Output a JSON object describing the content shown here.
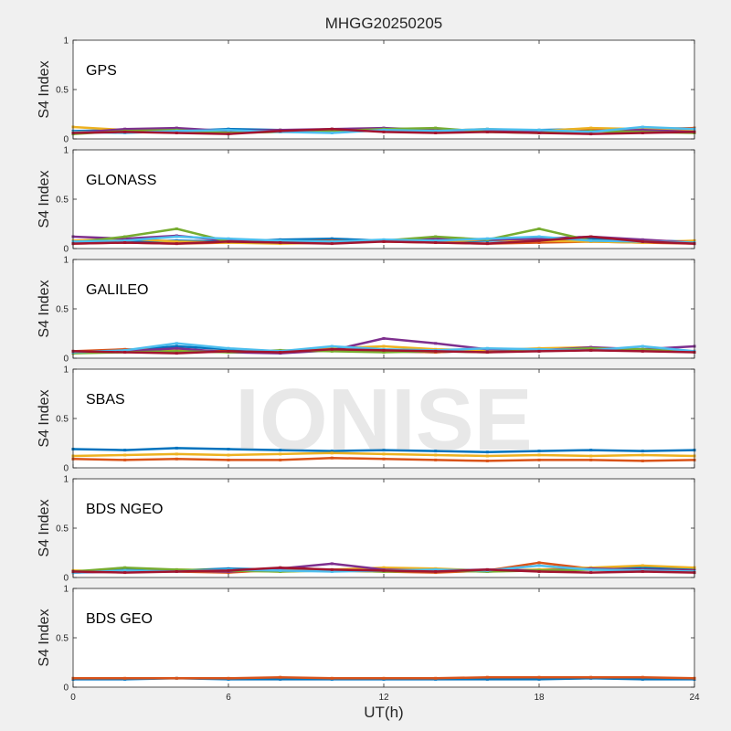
{
  "figure": {
    "title": "MHGG20250205",
    "xlabel": "UT(h)",
    "ylabel": "S4 Index",
    "watermark": "IONISE",
    "x_ticks": [
      "0",
      "6",
      "12",
      "18",
      "24"
    ],
    "y_ticks": [
      "0",
      "0.5",
      "1"
    ]
  },
  "chart_data": [
    {
      "type": "scatter",
      "panel_label": "GPS",
      "xlim": [
        0,
        24
      ],
      "ylim": [
        0,
        1
      ],
      "series": [
        {
          "color": "#0072BD",
          "x": [
            0,
            2,
            4,
            6,
            8,
            10,
            12,
            14,
            16,
            18,
            20,
            22,
            24
          ],
          "y": [
            0.08,
            0.09,
            0.08,
            0.1,
            0.09,
            0.08,
            0.1,
            0.09,
            0.08,
            0.09,
            0.1,
            0.09,
            0.08
          ]
        },
        {
          "color": "#D95319",
          "x": [
            0,
            2,
            4,
            6,
            8,
            10,
            12,
            14,
            16,
            18,
            20,
            22,
            24
          ],
          "y": [
            0.07,
            0.08,
            0.1,
            0.08,
            0.07,
            0.09,
            0.08,
            0.1,
            0.08,
            0.07,
            0.09,
            0.1,
            0.11
          ]
        },
        {
          "color": "#EDB120",
          "x": [
            0,
            2,
            4,
            6,
            8,
            10,
            12,
            14,
            16,
            18,
            20,
            22,
            24
          ],
          "y": [
            0.12,
            0.09,
            0.08,
            0.07,
            0.09,
            0.08,
            0.09,
            0.08,
            0.1,
            0.08,
            0.11,
            0.1,
            0.09
          ]
        },
        {
          "color": "#7E2F8E",
          "x": [
            0,
            2,
            4,
            6,
            8,
            10,
            12,
            14,
            16,
            18,
            20,
            22,
            24
          ],
          "y": [
            0.06,
            0.1,
            0.11,
            0.08,
            0.09,
            0.1,
            0.11,
            0.09,
            0.08,
            0.07,
            0.08,
            0.09,
            0.07
          ]
        },
        {
          "color": "#77AC30",
          "x": [
            0,
            2,
            4,
            6,
            8,
            10,
            12,
            14,
            16,
            18,
            20,
            22,
            24
          ],
          "y": [
            0.05,
            0.08,
            0.09,
            0.06,
            0.07,
            0.08,
            0.1,
            0.11,
            0.07,
            0.06,
            0.08,
            0.07,
            0.06
          ]
        },
        {
          "color": "#4DBEEE",
          "x": [
            0,
            2,
            4,
            6,
            8,
            10,
            12,
            14,
            16,
            18,
            20,
            22,
            24
          ],
          "y": [
            0.07,
            0.06,
            0.08,
            0.09,
            0.07,
            0.06,
            0.09,
            0.08,
            0.1,
            0.09,
            0.07,
            0.12,
            0.1
          ]
        },
        {
          "color": "#A2142F",
          "x": [
            0,
            2,
            4,
            6,
            8,
            10,
            12,
            14,
            16,
            18,
            20,
            22,
            24
          ],
          "y": [
            0.06,
            0.07,
            0.06,
            0.05,
            0.08,
            0.1,
            0.07,
            0.06,
            0.07,
            0.06,
            0.05,
            0.06,
            0.07
          ]
        }
      ]
    },
    {
      "type": "scatter",
      "panel_label": "GLONASS",
      "xlim": [
        0,
        24
      ],
      "ylim": [
        0,
        1
      ],
      "series": [
        {
          "color": "#0072BD",
          "x": [
            0,
            2,
            4,
            6,
            8,
            10,
            12,
            14,
            16,
            18,
            20,
            22,
            24
          ],
          "y": [
            0.06,
            0.07,
            0.08,
            0.07,
            0.09,
            0.1,
            0.08,
            0.07,
            0.08,
            0.09,
            0.1,
            0.08,
            0.07
          ]
        },
        {
          "color": "#D95319",
          "x": [
            0,
            2,
            4,
            6,
            8,
            10,
            12,
            14,
            16,
            18,
            20,
            22,
            24
          ],
          "y": [
            0.05,
            0.06,
            0.05,
            0.06,
            0.07,
            0.08,
            0.07,
            0.06,
            0.05,
            0.06,
            0.07,
            0.06,
            0.05
          ]
        },
        {
          "color": "#EDB120",
          "x": [
            0,
            2,
            4,
            6,
            8,
            10,
            12,
            14,
            16,
            18,
            20,
            22,
            24
          ],
          "y": [
            0.08,
            0.1,
            0.07,
            0.06,
            0.05,
            0.06,
            0.08,
            0.07,
            0.09,
            0.08,
            0.07,
            0.06,
            0.08
          ]
        },
        {
          "color": "#7E2F8E",
          "x": [
            0,
            2,
            4,
            6,
            8,
            10,
            12,
            14,
            16,
            18,
            20,
            22,
            24
          ],
          "y": [
            0.12,
            0.1,
            0.13,
            0.08,
            0.07,
            0.06,
            0.08,
            0.1,
            0.09,
            0.1,
            0.12,
            0.09,
            0.06
          ]
        },
        {
          "color": "#77AC30",
          "x": [
            0,
            2,
            4,
            6,
            8,
            10,
            12,
            14,
            16,
            18,
            20,
            22,
            24
          ],
          "y": [
            0.06,
            0.12,
            0.2,
            0.07,
            0.06,
            0.07,
            0.08,
            0.12,
            0.09,
            0.2,
            0.08,
            0.07,
            0.06
          ]
        },
        {
          "color": "#4DBEEE",
          "x": [
            0,
            2,
            4,
            6,
            8,
            10,
            12,
            14,
            16,
            18,
            20,
            22,
            24
          ],
          "y": [
            0.07,
            0.08,
            0.12,
            0.1,
            0.08,
            0.07,
            0.09,
            0.08,
            0.1,
            0.12,
            0.08,
            0.07,
            0.06
          ]
        },
        {
          "color": "#A2142F",
          "x": [
            0,
            2,
            4,
            6,
            8,
            10,
            12,
            14,
            16,
            18,
            20,
            22,
            24
          ],
          "y": [
            0.05,
            0.06,
            0.05,
            0.07,
            0.06,
            0.05,
            0.07,
            0.06,
            0.05,
            0.08,
            0.12,
            0.07,
            0.05
          ]
        }
      ]
    },
    {
      "type": "scatter",
      "panel_label": "GALILEO",
      "xlim": [
        0,
        24
      ],
      "ylim": [
        0,
        1
      ],
      "series": [
        {
          "color": "#0072BD",
          "x": [
            0,
            2,
            4,
            6,
            8,
            10,
            12,
            14,
            16,
            18,
            20,
            22,
            24
          ],
          "y": [
            0.06,
            0.08,
            0.12,
            0.09,
            0.07,
            0.08,
            0.07,
            0.06,
            0.08,
            0.07,
            0.09,
            0.08,
            0.07
          ]
        },
        {
          "color": "#D95319",
          "x": [
            0,
            2,
            4,
            6,
            8,
            10,
            12,
            14,
            16,
            18,
            20,
            22,
            24
          ],
          "y": [
            0.07,
            0.09,
            0.08,
            0.07,
            0.06,
            0.08,
            0.07,
            0.06,
            0.08,
            0.09,
            0.1,
            0.08,
            0.07
          ]
        },
        {
          "color": "#EDB120",
          "x": [
            0,
            2,
            4,
            6,
            8,
            10,
            12,
            14,
            16,
            18,
            20,
            22,
            24
          ],
          "y": [
            0.05,
            0.07,
            0.08,
            0.06,
            0.07,
            0.1,
            0.12,
            0.09,
            0.08,
            0.1,
            0.11,
            0.08,
            0.07
          ]
        },
        {
          "color": "#7E2F8E",
          "x": [
            0,
            2,
            4,
            6,
            8,
            10,
            12,
            14,
            16,
            18,
            20,
            22,
            24
          ],
          "y": [
            0.06,
            0.07,
            0.1,
            0.06,
            0.05,
            0.08,
            0.2,
            0.15,
            0.09,
            0.08,
            0.11,
            0.09,
            0.12
          ]
        },
        {
          "color": "#77AC30",
          "x": [
            0,
            2,
            4,
            6,
            8,
            10,
            12,
            14,
            16,
            18,
            20,
            22,
            24
          ],
          "y": [
            0.05,
            0.06,
            0.07,
            0.06,
            0.08,
            0.07,
            0.06,
            0.07,
            0.06,
            0.08,
            0.1,
            0.09,
            0.06
          ]
        },
        {
          "color": "#4DBEEE",
          "x": [
            0,
            2,
            4,
            6,
            8,
            10,
            12,
            14,
            16,
            18,
            20,
            22,
            24
          ],
          "y": [
            0.06,
            0.08,
            0.15,
            0.1,
            0.07,
            0.12,
            0.09,
            0.08,
            0.1,
            0.09,
            0.08,
            0.12,
            0.07
          ]
        },
        {
          "color": "#A2142F",
          "x": [
            0,
            2,
            4,
            6,
            8,
            10,
            12,
            14,
            16,
            18,
            20,
            22,
            24
          ],
          "y": [
            0.07,
            0.06,
            0.05,
            0.07,
            0.06,
            0.09,
            0.08,
            0.07,
            0.06,
            0.07,
            0.08,
            0.07,
            0.06
          ]
        }
      ]
    },
    {
      "type": "scatter",
      "panel_label": "SBAS",
      "xlim": [
        0,
        24
      ],
      "ylim": [
        0,
        1
      ],
      "series": [
        {
          "color": "#0072BD",
          "x": [
            0,
            2,
            4,
            6,
            8,
            10,
            12,
            14,
            16,
            18,
            20,
            22,
            24
          ],
          "y": [
            0.19,
            0.18,
            0.2,
            0.19,
            0.18,
            0.17,
            0.18,
            0.17,
            0.16,
            0.17,
            0.18,
            0.17,
            0.18
          ]
        },
        {
          "color": "#EDB120",
          "x": [
            0,
            2,
            4,
            6,
            8,
            10,
            12,
            14,
            16,
            18,
            20,
            22,
            24
          ],
          "y": [
            0.12,
            0.13,
            0.14,
            0.13,
            0.14,
            0.15,
            0.14,
            0.13,
            0.12,
            0.13,
            0.12,
            0.13,
            0.12
          ]
        },
        {
          "color": "#D95319",
          "x": [
            0,
            2,
            4,
            6,
            8,
            10,
            12,
            14,
            16,
            18,
            20,
            22,
            24
          ],
          "y": [
            0.09,
            0.08,
            0.09,
            0.08,
            0.08,
            0.1,
            0.09,
            0.08,
            0.07,
            0.08,
            0.08,
            0.07,
            0.08
          ]
        }
      ]
    },
    {
      "type": "scatter",
      "panel_label": "BDS NGEO",
      "xlim": [
        0,
        24
      ],
      "ylim": [
        0,
        1
      ],
      "series": [
        {
          "color": "#0072BD",
          "x": [
            0,
            2,
            4,
            6,
            8,
            10,
            12,
            14,
            16,
            18,
            20,
            22,
            24
          ],
          "y": [
            0.06,
            0.08,
            0.07,
            0.09,
            0.08,
            0.07,
            0.08,
            0.07,
            0.06,
            0.08,
            0.09,
            0.1,
            0.09
          ]
        },
        {
          "color": "#D95319",
          "x": [
            0,
            2,
            4,
            6,
            8,
            10,
            12,
            14,
            16,
            18,
            20,
            22,
            24
          ],
          "y": [
            0.05,
            0.07,
            0.06,
            0.05,
            0.08,
            0.07,
            0.06,
            0.05,
            0.07,
            0.15,
            0.09,
            0.08,
            0.07
          ]
        },
        {
          "color": "#EDB120",
          "x": [
            0,
            2,
            4,
            6,
            8,
            10,
            12,
            14,
            16,
            18,
            20,
            22,
            24
          ],
          "y": [
            0.07,
            0.06,
            0.08,
            0.07,
            0.06,
            0.08,
            0.1,
            0.09,
            0.07,
            0.08,
            0.1,
            0.12,
            0.1
          ]
        },
        {
          "color": "#7E2F8E",
          "x": [
            0,
            2,
            4,
            6,
            8,
            10,
            12,
            14,
            16,
            18,
            20,
            22,
            24
          ],
          "y": [
            0.05,
            0.06,
            0.07,
            0.06,
            0.09,
            0.14,
            0.08,
            0.07,
            0.08,
            0.07,
            0.09,
            0.08,
            0.07
          ]
        },
        {
          "color": "#77AC30",
          "x": [
            0,
            2,
            4,
            6,
            8,
            10,
            12,
            14,
            16,
            18,
            20,
            22,
            24
          ],
          "y": [
            0.06,
            0.1,
            0.08,
            0.07,
            0.06,
            0.07,
            0.06,
            0.07,
            0.06,
            0.07,
            0.08,
            0.07,
            0.06
          ]
        },
        {
          "color": "#4DBEEE",
          "x": [
            0,
            2,
            4,
            6,
            8,
            10,
            12,
            14,
            16,
            18,
            20,
            22,
            24
          ],
          "y": [
            0.05,
            0.07,
            0.06,
            0.08,
            0.07,
            0.06,
            0.07,
            0.08,
            0.07,
            0.12,
            0.08,
            0.07,
            0.06
          ]
        },
        {
          "color": "#A2142F",
          "x": [
            0,
            2,
            4,
            6,
            8,
            10,
            12,
            14,
            16,
            18,
            20,
            22,
            24
          ],
          "y": [
            0.06,
            0.05,
            0.06,
            0.07,
            0.1,
            0.08,
            0.07,
            0.06,
            0.08,
            0.06,
            0.05,
            0.06,
            0.05
          ]
        }
      ]
    },
    {
      "type": "scatter",
      "panel_label": "BDS GEO",
      "xlim": [
        0,
        24
      ],
      "ylim": [
        0,
        1
      ],
      "series": [
        {
          "color": "#0072BD",
          "x": [
            0,
            2,
            4,
            6,
            8,
            10,
            12,
            14,
            16,
            18,
            20,
            22,
            24
          ],
          "y": [
            0.08,
            0.08,
            0.09,
            0.08,
            0.08,
            0.08,
            0.08,
            0.08,
            0.08,
            0.08,
            0.09,
            0.08,
            0.08
          ]
        },
        {
          "color": "#D95319",
          "x": [
            0,
            2,
            4,
            6,
            8,
            10,
            12,
            14,
            16,
            18,
            20,
            22,
            24
          ],
          "y": [
            0.09,
            0.09,
            0.09,
            0.09,
            0.1,
            0.09,
            0.09,
            0.09,
            0.1,
            0.1,
            0.1,
            0.1,
            0.09
          ]
        }
      ]
    }
  ]
}
